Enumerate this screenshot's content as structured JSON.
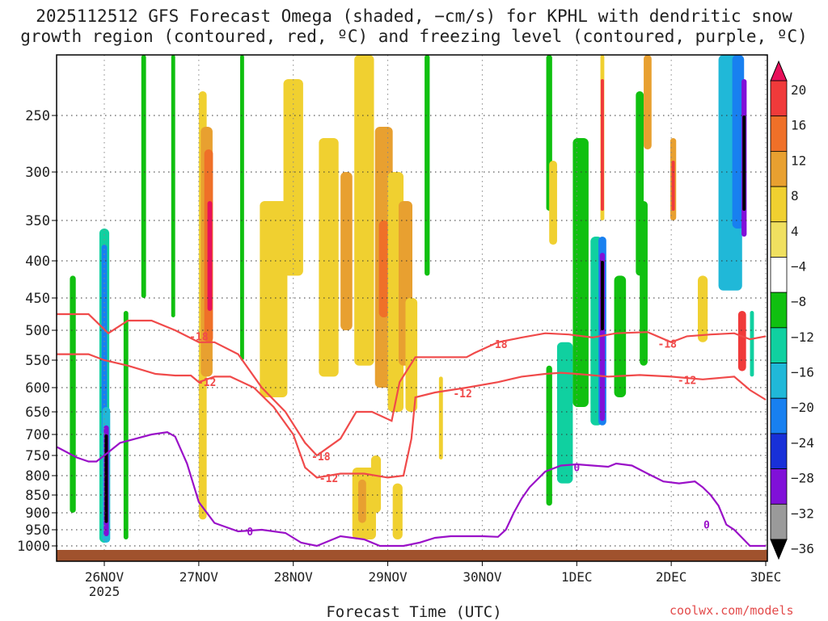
{
  "title_line1": "2025112512 GFS Forecast Omega (shaded, −cm/s) for KPHL with dendritic snow",
  "title_line2": "growth region (contoured, red, ºC) and freezing level (contoured, purple, ºC)",
  "xlabel": "Forecast Time (UTC)",
  "credit": "coolwx.com/models",
  "chart_data": {
    "type": "heatmap",
    "ylim": [
      1000,
      200
    ],
    "yscale": "pressure",
    "y_ticks": [
      250,
      300,
      350,
      400,
      450,
      500,
      550,
      600,
      650,
      700,
      750,
      800,
      850,
      900,
      950,
      1000
    ],
    "x_ticks": [
      {
        "label": "26NOV",
        "sub": "2025",
        "hour": 12
      },
      {
        "label": "27NOV",
        "sub": "",
        "hour": 36
      },
      {
        "label": "28NOV",
        "sub": "",
        "hour": 60
      },
      {
        "label": "29NOV",
        "sub": "",
        "hour": 84
      },
      {
        "label": "30NOV",
        "sub": "",
        "hour": 108
      },
      {
        "label": "1DEC",
        "sub": "",
        "hour": 132
      },
      {
        "label": "2DEC",
        "sub": "",
        "hour": 156
      },
      {
        "label": "3DEC",
        "sub": "",
        "hour": 180
      }
    ],
    "xlim_hours": [
      0,
      180
    ],
    "grid": true,
    "colorbar": {
      "labels": [
        "20",
        "16",
        "12",
        "8",
        "4",
        "−4",
        "−8",
        "−12",
        "−16",
        "−20",
        "−24",
        "−28",
        "−32",
        "−36"
      ],
      "colors": [
        "#e8105a",
        "#f03a3a",
        "#ef7028",
        "#e8a030",
        "#f0d030",
        "#f0e060",
        "#ffffff",
        "#10c010",
        "#10d0a0",
        "#20b8d8",
        "#1880f0",
        "#1830d8",
        "#8010d8",
        "#9a9a9a",
        "#000000"
      ]
    },
    "omega_cells": [
      {
        "h": 12.0,
        "w": 2.5,
        "p0": 360,
        "p1": 990,
        "v": -12
      },
      {
        "h": 12.0,
        "w": 1.4,
        "p0": 380,
        "p1": 700,
        "v": -20
      },
      {
        "h": 12.5,
        "w": 2.0,
        "p0": 640,
        "p1": 990,
        "v": -16
      },
      {
        "h": 12.5,
        "w": 1.3,
        "p0": 680,
        "p1": 970,
        "v": -30
      },
      {
        "h": 12.5,
        "w": 0.6,
        "p0": 700,
        "p1": 930,
        "v": -36
      },
      {
        "h": 4.0,
        "w": 1.5,
        "p0": 420,
        "p1": 900,
        "v": -8
      },
      {
        "h": 17.5,
        "w": 1.2,
        "p0": 470,
        "p1": 980,
        "v": -8
      },
      {
        "h": 22.0,
        "w": 1.2,
        "p0": 200,
        "p1": 450,
        "v": -8
      },
      {
        "h": 29.5,
        "w": 1.0,
        "p0": 200,
        "p1": 480,
        "v": -8
      },
      {
        "h": 37.0,
        "w": 2.0,
        "p0": 230,
        "p1": 920,
        "v": 4
      },
      {
        "h": 38.0,
        "w": 3.0,
        "p0": 260,
        "p1": 580,
        "v": 8
      },
      {
        "h": 38.5,
        "w": 2.2,
        "p0": 280,
        "p1": 520,
        "v": 12
      },
      {
        "h": 38.8,
        "w": 1.2,
        "p0": 330,
        "p1": 470,
        "v": 18
      },
      {
        "h": 47.0,
        "w": 1.0,
        "p0": 200,
        "p1": 550,
        "v": -8
      },
      {
        "h": 55.0,
        "w": 7.0,
        "p0": 330,
        "p1": 620,
        "v": 4
      },
      {
        "h": 60.0,
        "w": 5.0,
        "p0": 220,
        "p1": 420,
        "v": 4
      },
      {
        "h": 69.0,
        "w": 5.0,
        "p0": 270,
        "p1": 580,
        "v": 4
      },
      {
        "h": 73.5,
        "w": 3.0,
        "p0": 300,
        "p1": 500,
        "v": 8
      },
      {
        "h": 78.0,
        "w": 5.0,
        "p0": 200,
        "p1": 560,
        "v": 4
      },
      {
        "h": 83.0,
        "w": 4.5,
        "p0": 260,
        "p1": 600,
        "v": 8
      },
      {
        "h": 83.0,
        "w": 2.5,
        "p0": 350,
        "p1": 480,
        "v": 12
      },
      {
        "h": 86.0,
        "w": 4.0,
        "p0": 300,
        "p1": 650,
        "v": 4
      },
      {
        "h": 88.5,
        "w": 3.5,
        "p0": 330,
        "p1": 560,
        "v": 8
      },
      {
        "h": 90.0,
        "w": 3.0,
        "p0": 450,
        "p1": 650,
        "v": 4
      },
      {
        "h": 78.0,
        "w": 6.0,
        "p0": 780,
        "p1": 980,
        "v": 4
      },
      {
        "h": 77.5,
        "w": 2.0,
        "p0": 810,
        "p1": 930,
        "v": 8
      },
      {
        "h": 81.0,
        "w": 2.5,
        "p0": 750,
        "p1": 900,
        "v": 4
      },
      {
        "h": 86.5,
        "w": 2.5,
        "p0": 820,
        "p1": 980,
        "v": 4
      },
      {
        "h": 94.0,
        "w": 1.3,
        "p0": 200,
        "p1": 420,
        "v": -8
      },
      {
        "h": 97.5,
        "w": 1.0,
        "p0": 580,
        "p1": 760,
        "v": 4
      },
      {
        "h": 125.0,
        "w": 1.5,
        "p0": 200,
        "p1": 340,
        "v": -8
      },
      {
        "h": 126.0,
        "w": 2.0,
        "p0": 290,
        "p1": 380,
        "v": 4
      },
      {
        "h": 125.0,
        "w": 1.5,
        "p0": 560,
        "p1": 880,
        "v": -8
      },
      {
        "h": 129.0,
        "w": 4.0,
        "p0": 520,
        "p1": 820,
        "v": -12
      },
      {
        "h": 133.0,
        "w": 4.0,
        "p0": 270,
        "p1": 640,
        "v": -8
      },
      {
        "h": 137.0,
        "w": 3.0,
        "p0": 370,
        "p1": 680,
        "v": -12
      },
      {
        "h": 138.5,
        "w": 2.0,
        "p0": 370,
        "p1": 680,
        "v": -20
      },
      {
        "h": 138.5,
        "w": 1.3,
        "p0": 390,
        "p1": 670,
        "v": -30
      },
      {
        "h": 138.5,
        "w": 0.8,
        "p0": 400,
        "p1": 500,
        "v": -36
      },
      {
        "h": 138.5,
        "w": 1.0,
        "p0": 200,
        "p1": 350,
        "v": 4
      },
      {
        "h": 138.5,
        "w": 0.8,
        "p0": 220,
        "p1": 340,
        "v": 16
      },
      {
        "h": 143.0,
        "w": 3.0,
        "p0": 420,
        "p1": 620,
        "v": -8
      },
      {
        "h": 148.0,
        "w": 2.0,
        "p0": 230,
        "p1": 420,
        "v": -8
      },
      {
        "h": 149.0,
        "w": 2.0,
        "p0": 330,
        "p1": 560,
        "v": -8
      },
      {
        "h": 150.0,
        "w": 2.0,
        "p0": 200,
        "p1": 280,
        "v": 8
      },
      {
        "h": 156.5,
        "w": 1.5,
        "p0": 270,
        "p1": 350,
        "v": 8
      },
      {
        "h": 156.5,
        "w": 0.8,
        "p0": 290,
        "p1": 340,
        "v": 16
      },
      {
        "h": 164.0,
        "w": 2.5,
        "p0": 420,
        "p1": 520,
        "v": 4
      },
      {
        "h": 171.0,
        "w": 6.0,
        "p0": 200,
        "p1": 440,
        "v": -16
      },
      {
        "h": 173.0,
        "w": 3.0,
        "p0": 200,
        "p1": 360,
        "v": -20
      },
      {
        "h": 174.5,
        "w": 1.3,
        "p0": 220,
        "p1": 370,
        "v": -30
      },
      {
        "h": 174.5,
        "w": 0.8,
        "p0": 250,
        "p1": 340,
        "v": -36
      },
      {
        "h": 174.0,
        "w": 2.0,
        "p0": 470,
        "p1": 570,
        "v": 16
      },
      {
        "h": 176.5,
        "w": 1.0,
        "p0": 470,
        "p1": 580,
        "v": -12
      }
    ],
    "contours": [
      {
        "name": "-18",
        "color": "#f04a4a",
        "points": [
          [
            0,
            475
          ],
          [
            8,
            475
          ],
          [
            13,
            505
          ],
          [
            18,
            485
          ],
          [
            24,
            485
          ],
          [
            30,
            500
          ],
          [
            33,
            510
          ],
          [
            36,
            520
          ],
          [
            38,
            520
          ],
          [
            40,
            520
          ],
          [
            46,
            540
          ],
          [
            52,
            600
          ],
          [
            58,
            650
          ],
          [
            63,
            720
          ],
          [
            66,
            750
          ],
          [
            72,
            710
          ],
          [
            76,
            650
          ],
          [
            80,
            650
          ],
          [
            85,
            670
          ],
          [
            87,
            590
          ],
          [
            91,
            545
          ],
          [
            96,
            545
          ],
          [
            104,
            545
          ],
          [
            106,
            538
          ],
          [
            112,
            520
          ],
          [
            118,
            512
          ],
          [
            124,
            505
          ],
          [
            130,
            507
          ],
          [
            136,
            512
          ],
          [
            142,
            505
          ],
          [
            150,
            503
          ],
          [
            156,
            520
          ],
          [
            160,
            510
          ],
          [
            166,
            507
          ],
          [
            172,
            505
          ],
          [
            176,
            515
          ],
          [
            180,
            510
          ]
        ],
        "labels": [
          [
            36,
            510
          ],
          [
            67,
            752
          ],
          [
            112,
            523
          ],
          [
            155,
            522
          ]
        ]
      },
      {
        "name": "-12",
        "color": "#f04a4a",
        "points": [
          [
            0,
            540
          ],
          [
            8,
            540
          ],
          [
            12,
            550
          ],
          [
            18,
            560
          ],
          [
            25,
            575
          ],
          [
            30,
            578
          ],
          [
            34,
            578
          ],
          [
            36,
            590
          ],
          [
            40,
            580
          ],
          [
            44,
            580
          ],
          [
            50,
            600
          ],
          [
            55,
            640
          ],
          [
            60,
            700
          ],
          [
            63,
            780
          ],
          [
            66,
            805
          ],
          [
            72,
            795
          ],
          [
            78,
            795
          ],
          [
            84,
            805
          ],
          [
            88,
            800
          ],
          [
            90,
            710
          ],
          [
            91,
            620
          ],
          [
            96,
            610
          ],
          [
            104,
            600
          ],
          [
            112,
            590
          ],
          [
            118,
            580
          ],
          [
            124,
            575
          ],
          [
            128,
            573
          ],
          [
            132,
            575
          ],
          [
            140,
            580
          ],
          [
            148,
            577
          ],
          [
            156,
            580
          ],
          [
            164,
            585
          ],
          [
            172,
            580
          ],
          [
            176,
            605
          ],
          [
            180,
            625
          ]
        ],
        "labels": [
          [
            38,
            590
          ],
          [
            69,
            806
          ],
          [
            103,
            612
          ],
          [
            160,
            586
          ]
        ]
      },
      {
        "name": "0",
        "color": "#9a10c8",
        "points": [
          [
            0,
            730
          ],
          [
            5,
            755
          ],
          [
            8,
            765
          ],
          [
            10,
            765
          ],
          [
            12,
            750
          ],
          [
            16,
            720
          ],
          [
            20,
            710
          ],
          [
            24,
            700
          ],
          [
            28,
            695
          ],
          [
            30,
            705
          ],
          [
            33,
            770
          ],
          [
            36,
            870
          ],
          [
            40,
            930
          ],
          [
            46,
            955
          ],
          [
            52,
            950
          ],
          [
            58,
            960
          ],
          [
            62,
            990
          ],
          [
            66,
            1000
          ],
          [
            72,
            970
          ],
          [
            78,
            980
          ],
          [
            82,
            1000
          ],
          [
            88,
            1000
          ],
          [
            92,
            990
          ],
          [
            96,
            975
          ],
          [
            100,
            970
          ],
          [
            108,
            970
          ],
          [
            112,
            972
          ],
          [
            114,
            950
          ],
          [
            116,
            900
          ],
          [
            118,
            860
          ],
          [
            120,
            830
          ],
          [
            124,
            790
          ],
          [
            128,
            775
          ],
          [
            132,
            772
          ],
          [
            136,
            775
          ],
          [
            140,
            778
          ],
          [
            142,
            770
          ],
          [
            146,
            775
          ],
          [
            150,
            795
          ],
          [
            154,
            815
          ],
          [
            158,
            820
          ],
          [
            162,
            815
          ],
          [
            164,
            830
          ],
          [
            166,
            850
          ],
          [
            168,
            880
          ],
          [
            170,
            935
          ],
          [
            172,
            950
          ],
          [
            174,
            975
          ],
          [
            176,
            1000
          ],
          [
            180,
            1000
          ]
        ],
        "labels": [
          [
            49,
            955
          ],
          [
            132,
            779
          ],
          [
            165,
            935
          ]
        ]
      }
    ]
  }
}
